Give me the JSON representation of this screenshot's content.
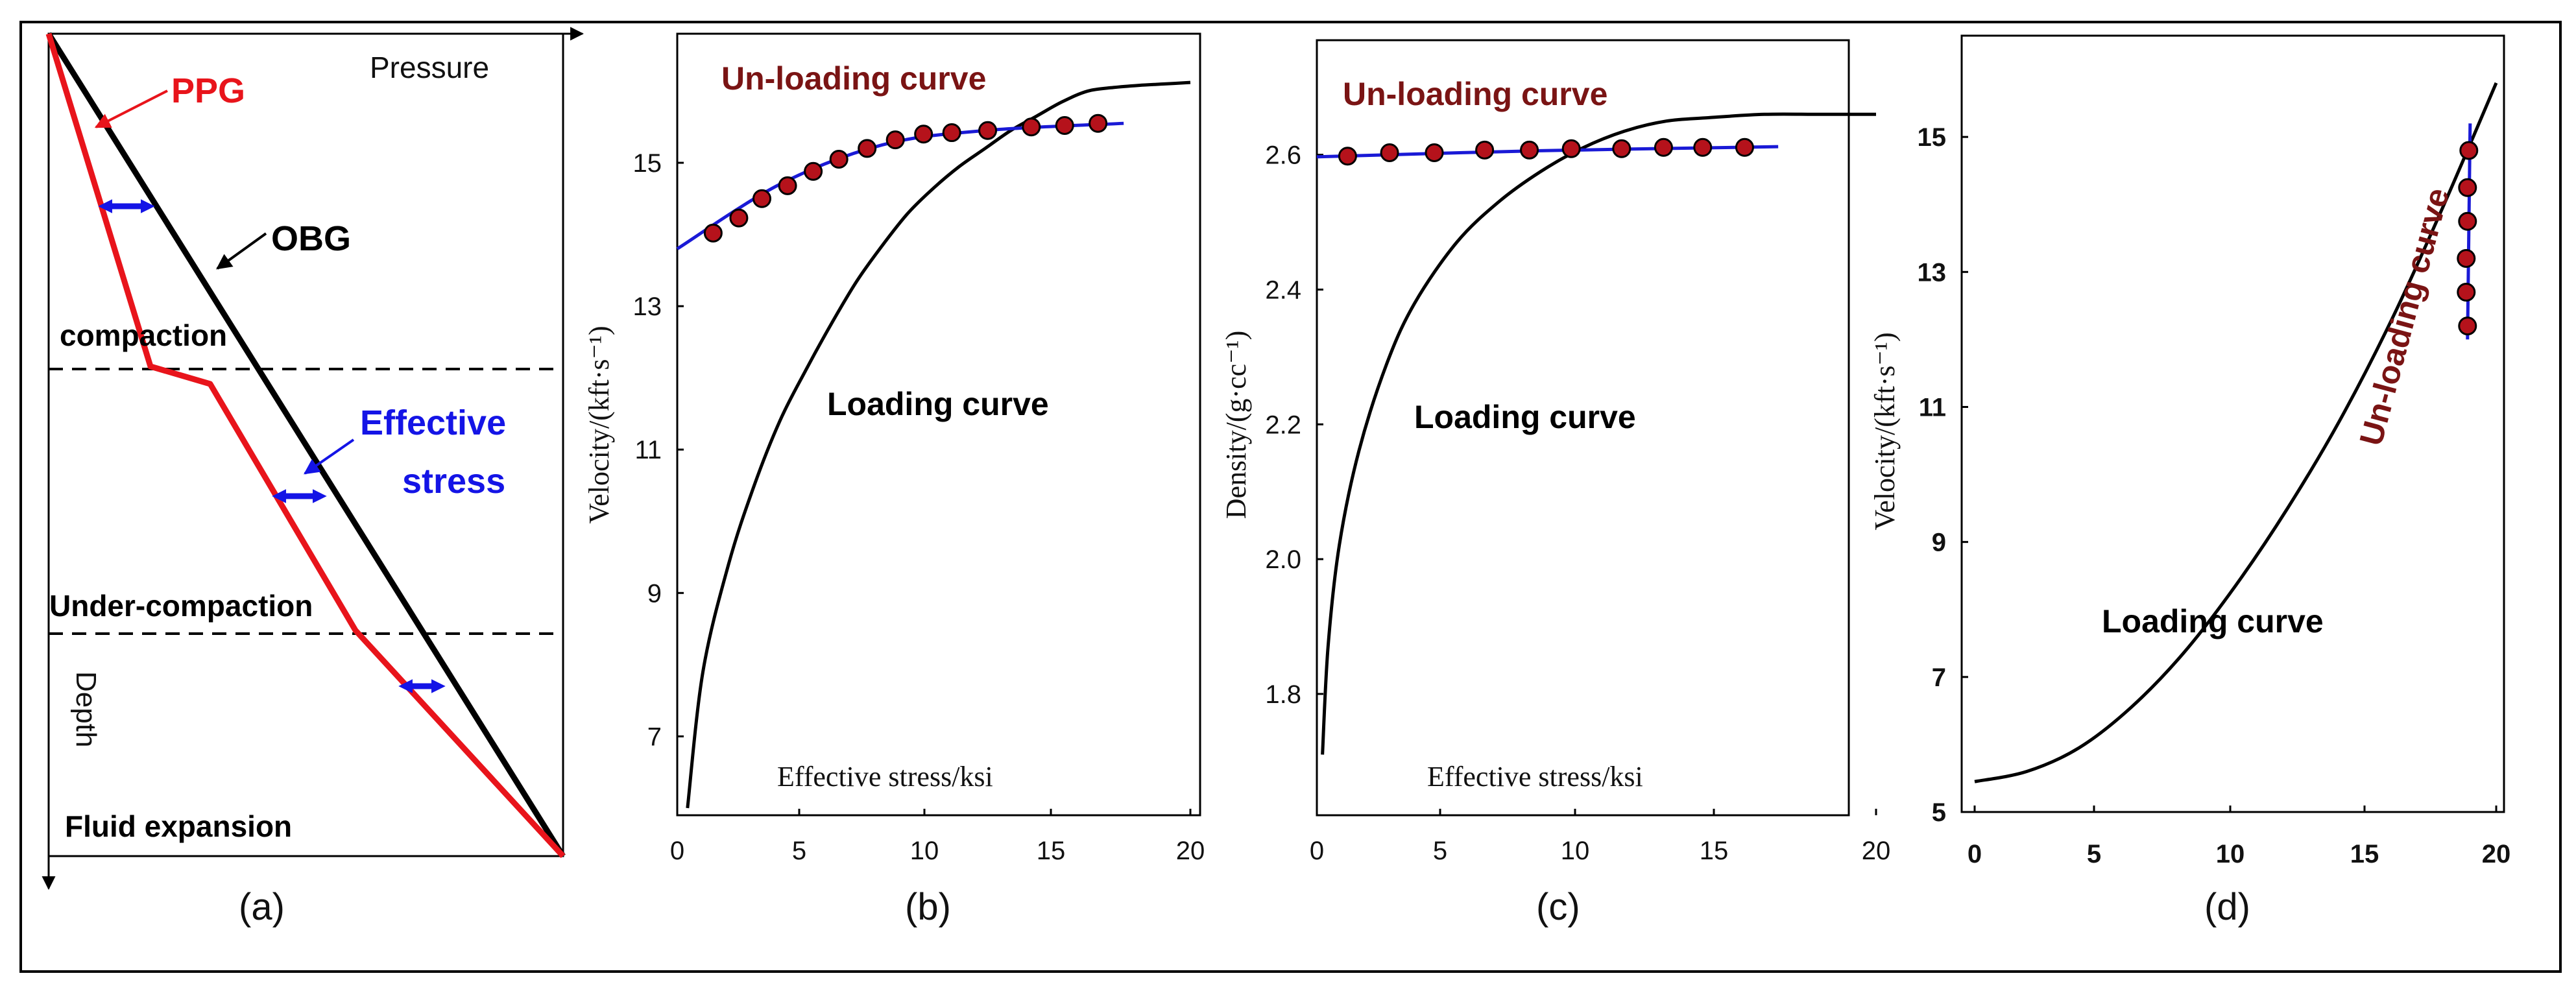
{
  "colors": {
    "ppg": "#e8141b",
    "obg": "#000000",
    "effective_stress": "#1414e6",
    "unloading": "#7a1414",
    "point_fill": "#b5121b",
    "fit_line": "#1a1ad6"
  },
  "panel_a": {
    "label": "(a)",
    "pressure_label": "Pressure",
    "depth_label": "Depth",
    "ppg_label": "PPG",
    "obg_label": "OBG",
    "compaction_label": "compaction",
    "effective_stress_label_line1": "Effective",
    "effective_stress_label_line2": "stress",
    "under_compaction_label": "Under-compaction",
    "fluid_expansion_label": "Fluid expansion",
    "icons": [
      "double-arrow-icon",
      "double-arrow-icon",
      "double-arrow-icon"
    ]
  },
  "panel_b": {
    "label": "(b)",
    "ylabel": "Velocity/(kft·s⁻¹)",
    "xlabel": "Effective stress/ksi",
    "loading_label": "Loading curve",
    "unloading_label": "Un-loading curve",
    "x_ticks": [
      "0",
      "5",
      "10",
      "15",
      "20"
    ],
    "y_ticks": [
      "7",
      "9",
      "11",
      "13",
      "15"
    ]
  },
  "panel_c": {
    "label": "(c)",
    "ylabel": "Density/(g·cc⁻¹)",
    "xlabel": "Effective stress/ksi",
    "loading_label": "Loading curve",
    "unloading_label": "Un-loading curve",
    "x_ticks": [
      "0",
      "5",
      "10",
      "15",
      "20"
    ],
    "y_ticks": [
      "1.8",
      "2.0",
      "2.2",
      "2.4",
      "2.6"
    ]
  },
  "panel_d": {
    "label": "(d)",
    "ylabel": "Velocity/(kft·s⁻¹)",
    "loading_label": "Loading curve",
    "unloading_label": "Un-loading curve",
    "x_ticks": [
      "0",
      "5",
      "10",
      "15",
      "20"
    ],
    "y_ticks": [
      "5",
      "7",
      "9",
      "11",
      "13",
      "15"
    ]
  },
  "chart_data": [
    {
      "type": "line",
      "xlabel": "Effective stress/ksi",
      "ylabel": "Velocity/(kft·s⁻¹)",
      "xlim": [
        0,
        20
      ],
      "ylim": [
        5.9,
        16.8
      ],
      "series": [
        {
          "name": "Loading curve",
          "x": [
            0.4,
            1,
            2,
            3,
            4,
            5,
            6,
            7,
            8,
            9,
            10,
            11,
            12,
            13,
            14,
            15,
            16,
            17,
            18,
            19,
            20
          ],
          "y": [
            6.0,
            7.9,
            9.4,
            10.5,
            11.4,
            12.1,
            12.75,
            13.35,
            13.85,
            14.3,
            14.65,
            14.95,
            15.2,
            15.45,
            15.65,
            15.85,
            16.0,
            16.05,
            16.08,
            16.1,
            16.12
          ]
        },
        {
          "name": "Un-loading curve",
          "x": [
            1.4,
            2.4,
            3.3,
            4.3,
            5.3,
            6.3,
            7.4,
            8.5,
            9.6,
            10.7,
            12.1,
            13.8,
            15.1,
            16.4
          ],
          "y": [
            14.02,
            14.23,
            14.5,
            14.68,
            14.88,
            15.05,
            15.2,
            15.32,
            15.4,
            15.42,
            15.45,
            15.5,
            15.52,
            15.55
          ]
        }
      ]
    },
    {
      "type": "line",
      "xlabel": "Effective stress/ksi",
      "ylabel": "Density/(g·cc⁻¹)",
      "xlim": [
        0,
        20
      ],
      "ylim": [
        1.62,
        2.77
      ],
      "series": [
        {
          "name": "Loading curve",
          "x": [
            0.2,
            0.4,
            0.8,
            1.5,
            2.5,
            3.5,
            5,
            6.5,
            8,
            9.5,
            11,
            12.5,
            14,
            16,
            18,
            20
          ],
          "y": [
            1.71,
            1.87,
            2.02,
            2.16,
            2.29,
            2.38,
            2.47,
            2.53,
            2.575,
            2.61,
            2.635,
            2.65,
            2.655,
            2.66,
            2.66,
            2.66
          ]
        },
        {
          "name": "Un-loading curve",
          "x": [
            1.1,
            2.6,
            4.2,
            6.0,
            7.6,
            9.1,
            10.9,
            12.4,
            13.8,
            15.3
          ],
          "y": [
            2.598,
            2.603,
            2.603,
            2.607,
            2.607,
            2.609,
            2.609,
            2.611,
            2.611,
            2.611
          ]
        }
      ]
    },
    {
      "type": "line",
      "ylabel": "Velocity/(kft·s⁻¹)",
      "xlim": [
        0,
        20
      ],
      "ylim": [
        5,
        16.5
      ],
      "series": [
        {
          "name": "Loading curve",
          "x": [
            0,
            2,
            4,
            6,
            8,
            10,
            12,
            14,
            16,
            18,
            20
          ],
          "y": [
            5.45,
            5.6,
            5.95,
            6.55,
            7.35,
            8.35,
            9.5,
            10.8,
            12.3,
            14.0,
            15.8
          ]
        },
        {
          "name": "Un-loading curve",
          "x": [
            18.9,
            18.85,
            18.85,
            18.9,
            18.9,
            18.95
          ],
          "y": [
            12.2,
            12.7,
            13.2,
            13.75,
            14.25,
            14.8
          ]
        }
      ]
    }
  ]
}
